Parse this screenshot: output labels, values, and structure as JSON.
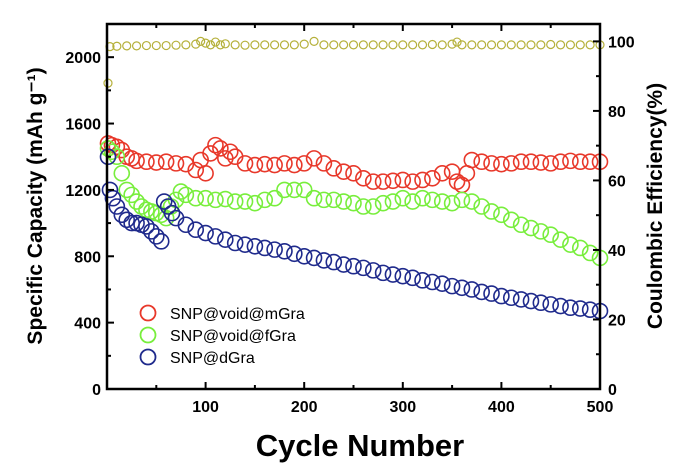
{
  "chart_data": {
    "type": "scatter",
    "xlabel": "Cycle Number",
    "ylabel": "Specific Capacity (mAh g⁻¹)",
    "y2label": "Coulombic Efficiency(%)",
    "xlim": [
      0,
      500
    ],
    "ylim": [
      0,
      2200
    ],
    "y2lim": [
      0,
      105
    ],
    "xticks": [
      100,
      200,
      300,
      400,
      500
    ],
    "yticks": [
      0,
      400,
      800,
      1200,
      1600,
      2000
    ],
    "y2ticks": [
      0,
      20,
      40,
      60,
      80,
      100
    ],
    "grid": false,
    "legend_position": "bottom-left",
    "series": [
      {
        "name": "SNP@void@mGra",
        "axis": "left",
        "color": "#e8382a",
        "marker": "open-circle",
        "points": [
          [
            1,
            1480
          ],
          [
            5,
            1470
          ],
          [
            10,
            1460
          ],
          [
            15,
            1440
          ],
          [
            20,
            1400
          ],
          [
            25,
            1390
          ],
          [
            30,
            1375
          ],
          [
            40,
            1370
          ],
          [
            50,
            1365
          ],
          [
            60,
            1370
          ],
          [
            70,
            1360
          ],
          [
            80,
            1355
          ],
          [
            90,
            1320
          ],
          [
            95,
            1380
          ],
          [
            100,
            1300
          ],
          [
            105,
            1420
          ],
          [
            110,
            1470
          ],
          [
            115,
            1450
          ],
          [
            120,
            1390
          ],
          [
            125,
            1430
          ],
          [
            130,
            1400
          ],
          [
            140,
            1360
          ],
          [
            150,
            1350
          ],
          [
            160,
            1355
          ],
          [
            170,
            1350
          ],
          [
            180,
            1360
          ],
          [
            190,
            1350
          ],
          [
            200,
            1360
          ],
          [
            210,
            1390
          ],
          [
            220,
            1360
          ],
          [
            230,
            1330
          ],
          [
            240,
            1310
          ],
          [
            250,
            1300
          ],
          [
            260,
            1270
          ],
          [
            270,
            1250
          ],
          [
            280,
            1250
          ],
          [
            290,
            1255
          ],
          [
            300,
            1260
          ],
          [
            310,
            1250
          ],
          [
            320,
            1260
          ],
          [
            330,
            1270
          ],
          [
            340,
            1300
          ],
          [
            350,
            1310
          ],
          [
            355,
            1250
          ],
          [
            360,
            1230
          ],
          [
            365,
            1300
          ],
          [
            370,
            1380
          ],
          [
            380,
            1370
          ],
          [
            390,
            1360
          ],
          [
            400,
            1355
          ],
          [
            410,
            1360
          ],
          [
            420,
            1370
          ],
          [
            430,
            1370
          ],
          [
            440,
            1365
          ],
          [
            450,
            1360
          ],
          [
            460,
            1370
          ],
          [
            470,
            1375
          ],
          [
            480,
            1370
          ],
          [
            490,
            1370
          ],
          [
            500,
            1370
          ]
        ]
      },
      {
        "name": "SNP@void@fGra",
        "axis": "left",
        "color": "#78ee3c",
        "marker": "open-circle",
        "points": [
          [
            1,
            1450
          ],
          [
            5,
            1430
          ],
          [
            10,
            1400
          ],
          [
            15,
            1300
          ],
          [
            20,
            1200
          ],
          [
            25,
            1170
          ],
          [
            30,
            1130
          ],
          [
            35,
            1100
          ],
          [
            40,
            1080
          ],
          [
            45,
            1070
          ],
          [
            50,
            1060
          ],
          [
            55,
            1050
          ],
          [
            60,
            1030
          ],
          [
            65,
            1100
          ],
          [
            70,
            1140
          ],
          [
            75,
            1190
          ],
          [
            80,
            1170
          ],
          [
            90,
            1150
          ],
          [
            100,
            1150
          ],
          [
            110,
            1140
          ],
          [
            120,
            1145
          ],
          [
            130,
            1130
          ],
          [
            140,
            1130
          ],
          [
            150,
            1120
          ],
          [
            160,
            1140
          ],
          [
            170,
            1150
          ],
          [
            180,
            1200
          ],
          [
            190,
            1200
          ],
          [
            200,
            1200
          ],
          [
            210,
            1150
          ],
          [
            220,
            1140
          ],
          [
            230,
            1140
          ],
          [
            240,
            1130
          ],
          [
            250,
            1120
          ],
          [
            260,
            1100
          ],
          [
            270,
            1100
          ],
          [
            280,
            1120
          ],
          [
            290,
            1130
          ],
          [
            300,
            1150
          ],
          [
            310,
            1130
          ],
          [
            320,
            1150
          ],
          [
            330,
            1140
          ],
          [
            340,
            1130
          ],
          [
            350,
            1120
          ],
          [
            360,
            1140
          ],
          [
            370,
            1130
          ],
          [
            380,
            1100
          ],
          [
            390,
            1070
          ],
          [
            400,
            1050
          ],
          [
            410,
            1020
          ],
          [
            420,
            990
          ],
          [
            430,
            970
          ],
          [
            440,
            950
          ],
          [
            450,
            930
          ],
          [
            460,
            900
          ],
          [
            470,
            870
          ],
          [
            480,
            850
          ],
          [
            490,
            820
          ],
          [
            500,
            790
          ]
        ]
      },
      {
        "name": "SNP@dGra",
        "axis": "left",
        "color": "#1f2a8c",
        "marker": "open-circle",
        "points": [
          [
            1,
            1400
          ],
          [
            3,
            1200
          ],
          [
            6,
            1150
          ],
          [
            10,
            1100
          ],
          [
            15,
            1050
          ],
          [
            20,
            1020
          ],
          [
            25,
            1000
          ],
          [
            30,
            1000
          ],
          [
            35,
            990
          ],
          [
            40,
            980
          ],
          [
            45,
            950
          ],
          [
            50,
            920
          ],
          [
            55,
            890
          ],
          [
            58,
            1130
          ],
          [
            62,
            1100
          ],
          [
            66,
            1060
          ],
          [
            70,
            1030
          ],
          [
            80,
            990
          ],
          [
            90,
            960
          ],
          [
            100,
            940
          ],
          [
            110,
            920
          ],
          [
            120,
            900
          ],
          [
            130,
            880
          ],
          [
            140,
            870
          ],
          [
            150,
            860
          ],
          [
            160,
            850
          ],
          [
            170,
            840
          ],
          [
            180,
            830
          ],
          [
            190,
            815
          ],
          [
            200,
            800
          ],
          [
            210,
            790
          ],
          [
            220,
            775
          ],
          [
            230,
            765
          ],
          [
            240,
            750
          ],
          [
            250,
            740
          ],
          [
            260,
            730
          ],
          [
            270,
            715
          ],
          [
            280,
            700
          ],
          [
            290,
            690
          ],
          [
            300,
            680
          ],
          [
            310,
            670
          ],
          [
            320,
            655
          ],
          [
            330,
            645
          ],
          [
            340,
            635
          ],
          [
            350,
            620
          ],
          [
            360,
            610
          ],
          [
            370,
            600
          ],
          [
            380,
            585
          ],
          [
            390,
            575
          ],
          [
            400,
            560
          ],
          [
            410,
            550
          ],
          [
            420,
            540
          ],
          [
            430,
            530
          ],
          [
            440,
            520
          ],
          [
            450,
            510
          ],
          [
            460,
            500
          ],
          [
            470,
            490
          ],
          [
            480,
            485
          ],
          [
            490,
            478
          ],
          [
            500,
            470
          ]
        ]
      },
      {
        "axis": "right",
        "color": "#b5b03a",
        "marker": "open-circle-small",
        "points": [
          [
            1,
            88
          ],
          [
            3,
            98.5
          ],
          [
            10,
            98.6
          ],
          [
            20,
            98.7
          ],
          [
            30,
            98.7
          ],
          [
            40,
            98.8
          ],
          [
            50,
            98.8
          ],
          [
            60,
            98.8
          ],
          [
            70,
            98.9
          ],
          [
            80,
            99
          ],
          [
            90,
            99.2
          ],
          [
            95,
            100
          ],
          [
            100,
            99.5
          ],
          [
            105,
            99
          ],
          [
            110,
            99.8
          ],
          [
            115,
            99
          ],
          [
            120,
            99.3
          ],
          [
            130,
            99
          ],
          [
            140,
            98.9
          ],
          [
            150,
            99
          ],
          [
            160,
            99
          ],
          [
            170,
            99
          ],
          [
            180,
            99
          ],
          [
            190,
            99
          ],
          [
            200,
            99.2
          ],
          [
            210,
            100
          ],
          [
            220,
            99
          ],
          [
            230,
            99
          ],
          [
            240,
            99
          ],
          [
            250,
            99
          ],
          [
            260,
            99
          ],
          [
            270,
            99
          ],
          [
            280,
            99
          ],
          [
            290,
            99
          ],
          [
            300,
            99
          ],
          [
            310,
            99
          ],
          [
            320,
            99
          ],
          [
            330,
            99.1
          ],
          [
            340,
            99
          ],
          [
            350,
            99.2
          ],
          [
            355,
            99.8
          ],
          [
            360,
            99
          ],
          [
            370,
            99
          ],
          [
            380,
            99
          ],
          [
            390,
            99
          ],
          [
            400,
            99
          ],
          [
            410,
            99
          ],
          [
            420,
            99
          ],
          [
            430,
            99
          ],
          [
            440,
            99
          ],
          [
            450,
            99.1
          ],
          [
            460,
            99
          ],
          [
            470,
            99
          ],
          [
            480,
            99
          ],
          [
            490,
            99
          ],
          [
            500,
            99
          ]
        ]
      }
    ]
  }
}
